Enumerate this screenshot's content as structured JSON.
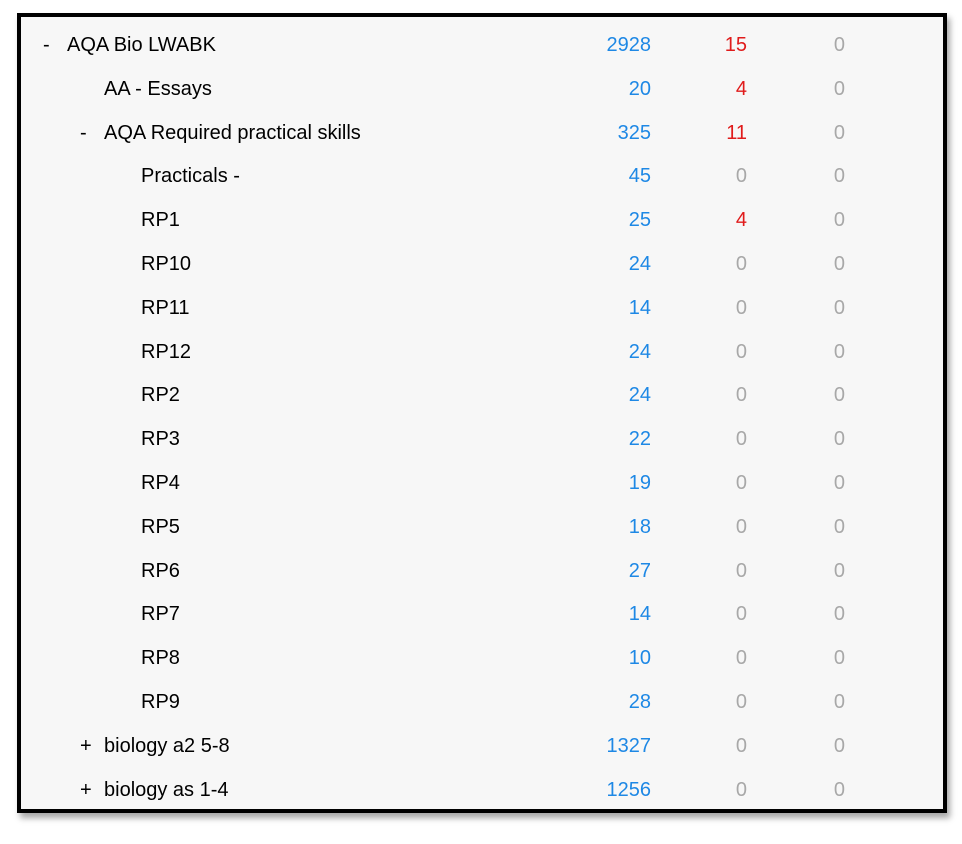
{
  "decks": [
    {
      "toggle": "-",
      "name": "AQA Bio LWABK",
      "new": "2928",
      "learn": "15",
      "due": "0",
      "level": 0
    },
    {
      "toggle": "",
      "name": "AA - Essays",
      "new": "20",
      "learn": "4",
      "due": "0",
      "level": 1
    },
    {
      "toggle": "-",
      "name": "AQA Required practical skills",
      "new": "325",
      "learn": "11",
      "due": "0",
      "level": 1
    },
    {
      "toggle": "",
      "name": "Practicals -",
      "new": "45",
      "learn": "0",
      "due": "0",
      "level": 2
    },
    {
      "toggle": "",
      "name": "RP1",
      "new": "25",
      "learn": "4",
      "due": "0",
      "level": 2
    },
    {
      "toggle": "",
      "name": "RP10",
      "new": "24",
      "learn": "0",
      "due": "0",
      "level": 2
    },
    {
      "toggle": "",
      "name": "RP11",
      "new": "14",
      "learn": "0",
      "due": "0",
      "level": 2
    },
    {
      "toggle": "",
      "name": "RP12",
      "new": "24",
      "learn": "0",
      "due": "0",
      "level": 2
    },
    {
      "toggle": "",
      "name": "RP2",
      "new": "24",
      "learn": "0",
      "due": "0",
      "level": 2
    },
    {
      "toggle": "",
      "name": "RP3",
      "new": "22",
      "learn": "0",
      "due": "0",
      "level": 2
    },
    {
      "toggle": "",
      "name": "RP4",
      "new": "19",
      "learn": "0",
      "due": "0",
      "level": 2
    },
    {
      "toggle": "",
      "name": "RP5",
      "new": "18",
      "learn": "0",
      "due": "0",
      "level": 2
    },
    {
      "toggle": "",
      "name": "RP6",
      "new": "27",
      "learn": "0",
      "due": "0",
      "level": 2
    },
    {
      "toggle": "",
      "name": "RP7",
      "new": "14",
      "learn": "0",
      "due": "0",
      "level": 2
    },
    {
      "toggle": "",
      "name": "RP8",
      "new": "10",
      "learn": "0",
      "due": "0",
      "level": 2
    },
    {
      "toggle": "",
      "name": "RP9",
      "new": "28",
      "learn": "0",
      "due": "0",
      "level": 2
    },
    {
      "toggle": "+",
      "name": "biology a2 5-8",
      "new": "1327",
      "learn": "0",
      "due": "0",
      "level": 1
    },
    {
      "toggle": "+",
      "name": "biology as 1-4",
      "new": "1256",
      "learn": "0",
      "due": "0",
      "level": 1
    }
  ],
  "colors": {
    "new": "#1e88e5",
    "learn_active": "#e01b1b",
    "zero": "#a8a8a8"
  }
}
